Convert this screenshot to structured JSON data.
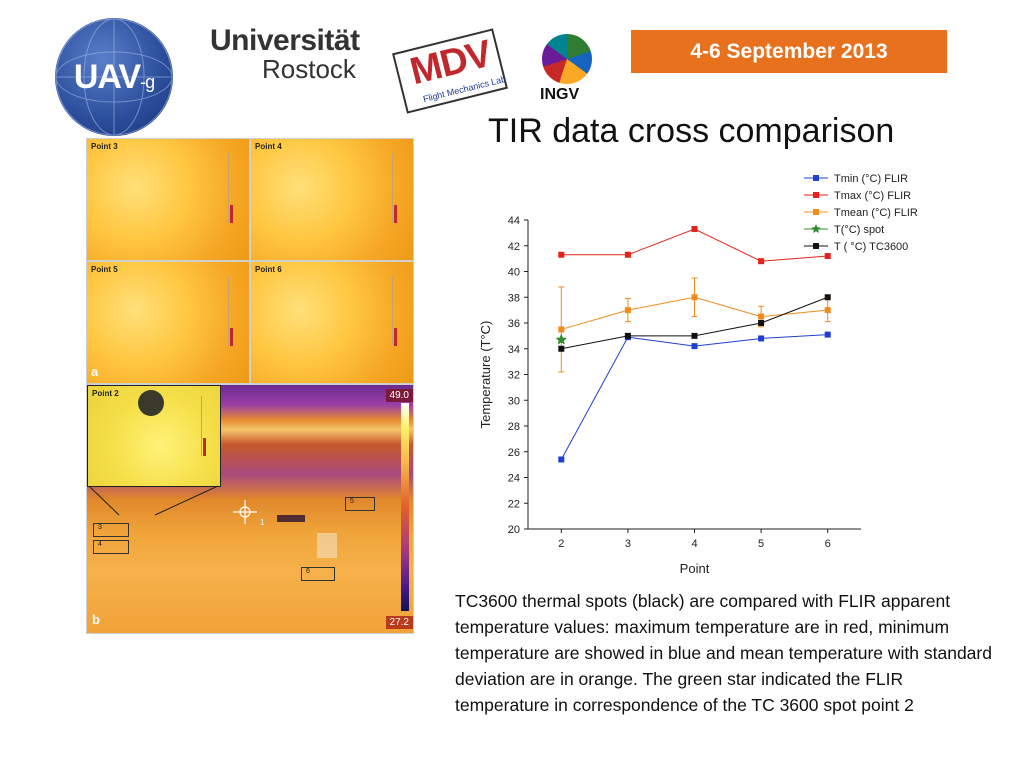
{
  "header": {
    "logo_uav_text": "UAV",
    "logo_uav_suffix": "-g",
    "logo_univ_line1": "Universität",
    "logo_univ_line2": "Rostock",
    "logo_mdv_text": "MDV",
    "logo_mdv_sub": "Flight Mechanics Lab",
    "logo_ingv_text": "INGV",
    "date": "4-6 September 2013",
    "date_color": "#e8711e"
  },
  "title": "TIR data cross comparison",
  "thermal": {
    "tiles": [
      "Point 3",
      "Point 4",
      "Point 5",
      "Point 6"
    ],
    "panel_a_letter": "a",
    "panel_b_letter": "b",
    "inset_label": "Point 2",
    "scale_max": "49.0",
    "scale_min": "27.2",
    "spots": [
      "3",
      "4",
      "5",
      "6"
    ],
    "crosshair_label": "1"
  },
  "chart_data": {
    "type": "line",
    "xlabel": "Point",
    "ylabel": "Temperature (T°C)",
    "x": [
      2,
      3,
      4,
      5,
      6
    ],
    "xlim": [
      1.5,
      6.5
    ],
    "ylim": [
      20,
      44
    ],
    "yticks": [
      20,
      22,
      24,
      26,
      28,
      30,
      32,
      34,
      36,
      38,
      40,
      42,
      44
    ],
    "legend_position": "top-right",
    "series": [
      {
        "name": "Tmin (°C) FLIR",
        "color": "#1f3fd1",
        "marker": "square",
        "x": [
          2,
          3,
          4,
          5,
          6
        ],
        "values": [
          25.4,
          34.9,
          34.2,
          34.8,
          35.1
        ]
      },
      {
        "name": "Tmax (°C) FLIR",
        "color": "#e3231b",
        "marker": "square",
        "x": [
          2,
          3,
          4,
          5,
          6
        ],
        "values": [
          41.3,
          41.3,
          43.3,
          40.8,
          41.2
        ]
      },
      {
        "name": "Tmean (°C) FLIR",
        "color": "#f08c1e",
        "marker": "square",
        "x": [
          2,
          3,
          4,
          5,
          6
        ],
        "values": [
          35.5,
          37.0,
          38.0,
          36.5,
          37.0
        ],
        "error": [
          3.3,
          0.9,
          1.5,
          0.8,
          0.9
        ]
      },
      {
        "name": "T(°C) spot",
        "color": "#2e8b2e",
        "marker": "star",
        "x": [
          2
        ],
        "values": [
          34.7
        ]
      },
      {
        "name": "T ( °C) TC3600",
        "color": "#111111",
        "marker": "square",
        "x": [
          2,
          3,
          4,
          5,
          6
        ],
        "values": [
          34.0,
          35.0,
          35.0,
          36.0,
          38.0
        ]
      }
    ]
  },
  "caption": "TC3600 thermal spots (black) are compared with FLIR apparent temperature values:  maximum temperature are in red, minimum temperature are showed in blue and mean temperature with standard deviation are  in orange.  The green star indicated the FLIR  temperature in correspondence of the TC 3600 spot point 2"
}
